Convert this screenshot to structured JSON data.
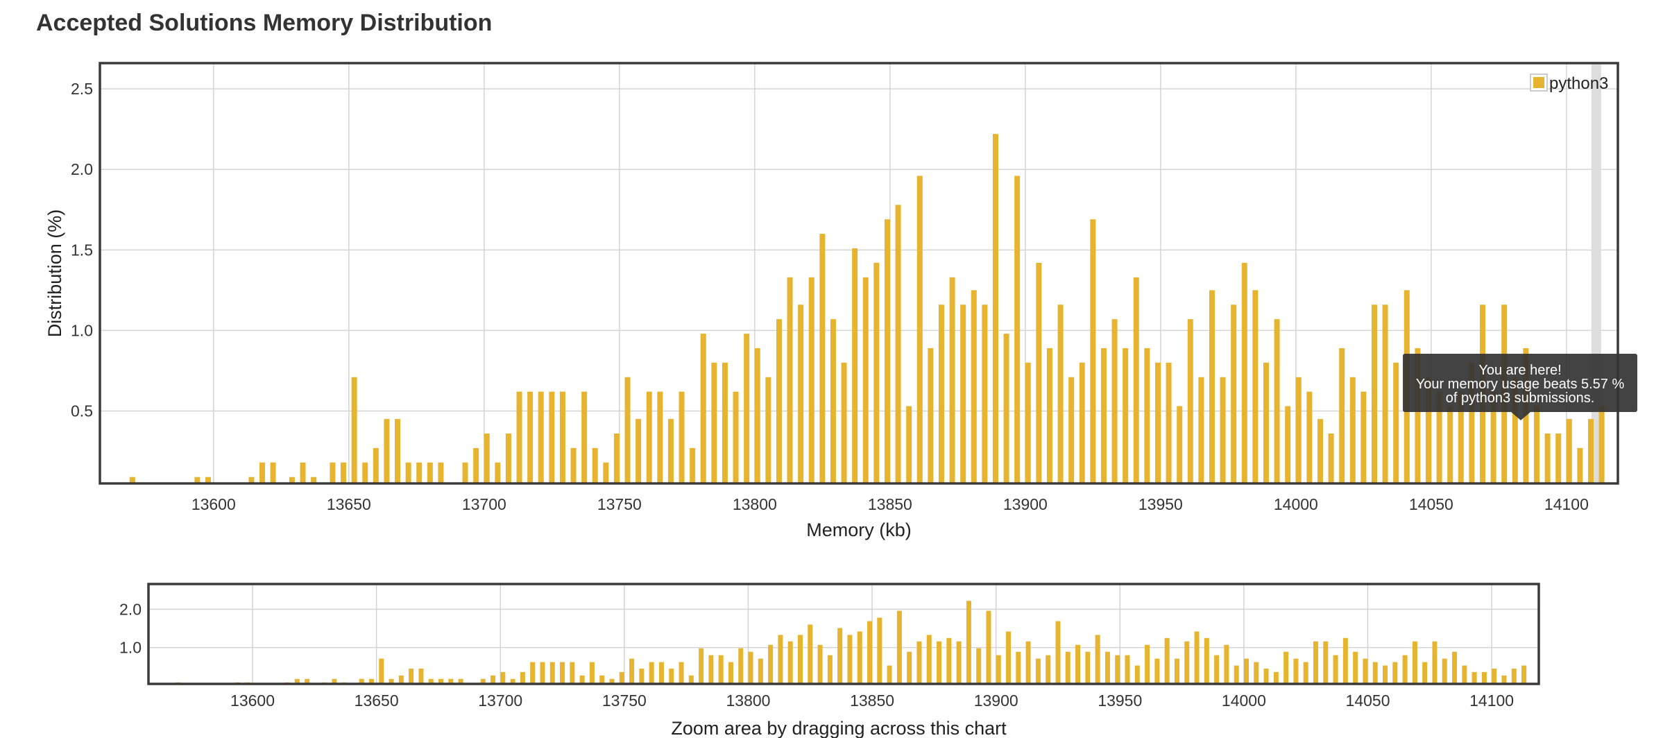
{
  "page": {
    "title": "Accepted Solutions Memory Distribution"
  },
  "colors": {
    "bar": "#e6b42e",
    "grid": "#d4d4d4",
    "frame": "#3a3a3a",
    "tooltip_bg": "#333333",
    "highlight": "#dddddd"
  },
  "main_chart": {
    "xlabel": "Memory (kb)",
    "ylabel": "Distribution (%)",
    "legend": "python3",
    "xticks": [
      "13600",
      "13650",
      "13700",
      "13750",
      "13800",
      "13850",
      "13900",
      "13950",
      "14000",
      "14050",
      "14100"
    ],
    "yticks": [
      "0.5",
      "1.0",
      "1.5",
      "2.0",
      "2.5"
    ],
    "tooltip": {
      "line1": "You are here!",
      "line2": "Your memory usage beats 5.57 %",
      "line3": "of python3 submissions."
    }
  },
  "zoom_chart": {
    "label": "Zoom area by dragging across this chart",
    "xticks": [
      "13600",
      "13650",
      "13700",
      "13750",
      "13800",
      "13850",
      "13900",
      "13950",
      "14000",
      "14050",
      "14100"
    ],
    "yticks": [
      "1.0",
      "2.0"
    ]
  },
  "chart_data": {
    "type": "bar",
    "title": "Accepted Solutions Memory Distribution",
    "xlabel": "Memory (kb)",
    "ylabel": "Distribution (%)",
    "xlim": [
      13558,
      14119
    ],
    "ylim": [
      0.05,
      2.66
    ],
    "legend_position": "top-right",
    "grid": true,
    "series": [
      {
        "name": "python3",
        "points": [
          [
            13570,
            0.09
          ],
          [
            13594,
            0.09
          ],
          [
            13598,
            0.09
          ],
          [
            13614,
            0.09
          ],
          [
            13618,
            0.18
          ],
          [
            13622,
            0.18
          ],
          [
            13629,
            0.09
          ],
          [
            13633,
            0.18
          ],
          [
            13637,
            0.09
          ],
          [
            13644,
            0.18
          ],
          [
            13648,
            0.18
          ],
          [
            13652,
            0.71
          ],
          [
            13656,
            0.18
          ],
          [
            13660,
            0.27
          ],
          [
            13664,
            0.45
          ],
          [
            13668,
            0.45
          ],
          [
            13672,
            0.18
          ],
          [
            13676,
            0.18
          ],
          [
            13680,
            0.18
          ],
          [
            13684,
            0.18
          ],
          [
            13693,
            0.18
          ],
          [
            13697,
            0.27
          ],
          [
            13701,
            0.36
          ],
          [
            13705,
            0.18
          ],
          [
            13709,
            0.36
          ],
          [
            13713,
            0.62
          ],
          [
            13717,
            0.62
          ],
          [
            13721,
            0.62
          ],
          [
            13725,
            0.62
          ],
          [
            13729,
            0.62
          ],
          [
            13733,
            0.27
          ],
          [
            13737,
            0.62
          ],
          [
            13741,
            0.27
          ],
          [
            13745,
            0.18
          ],
          [
            13749,
            0.36
          ],
          [
            13753,
            0.71
          ],
          [
            13757,
            0.45
          ],
          [
            13761,
            0.62
          ],
          [
            13765,
            0.62
          ],
          [
            13769,
            0.45
          ],
          [
            13773,
            0.62
          ],
          [
            13777,
            0.27
          ],
          [
            13781,
            0.98
          ],
          [
            13785,
            0.8
          ],
          [
            13789,
            0.8
          ],
          [
            13793,
            0.62
          ],
          [
            13797,
            0.98
          ],
          [
            13801,
            0.89
          ],
          [
            13805,
            0.71
          ],
          [
            13809,
            1.07
          ],
          [
            13813,
            1.33
          ],
          [
            13817,
            1.16
          ],
          [
            13821,
            1.33
          ],
          [
            13825,
            1.6
          ],
          [
            13829,
            1.07
          ],
          [
            13833,
            0.8
          ],
          [
            13837,
            1.51
          ],
          [
            13841,
            1.33
          ],
          [
            13845,
            1.42
          ],
          [
            13849,
            1.69
          ],
          [
            13853,
            1.78
          ],
          [
            13857,
            0.53
          ],
          [
            13861,
            1.96
          ],
          [
            13865,
            0.89
          ],
          [
            13869,
            1.16
          ],
          [
            13873,
            1.33
          ],
          [
            13877,
            1.16
          ],
          [
            13881,
            1.25
          ],
          [
            13885,
            1.16
          ],
          [
            13889,
            2.22
          ],
          [
            13893,
            0.98
          ],
          [
            13897,
            1.96
          ],
          [
            13901,
            0.8
          ],
          [
            13905,
            1.42
          ],
          [
            13909,
            0.89
          ],
          [
            13913,
            1.16
          ],
          [
            13917,
            0.71
          ],
          [
            13921,
            0.8
          ],
          [
            13925,
            1.69
          ],
          [
            13929,
            0.89
          ],
          [
            13933,
            1.07
          ],
          [
            13937,
            0.89
          ],
          [
            13941,
            1.33
          ],
          [
            13945,
            0.89
          ],
          [
            13949,
            0.8
          ],
          [
            13953,
            0.8
          ],
          [
            13957,
            0.53
          ],
          [
            13961,
            1.07
          ],
          [
            13965,
            0.71
          ],
          [
            13969,
            1.25
          ],
          [
            13973,
            0.71
          ],
          [
            13977,
            1.16
          ],
          [
            13981,
            1.42
          ],
          [
            13985,
            1.25
          ],
          [
            13989,
            0.8
          ],
          [
            13993,
            1.07
          ],
          [
            13997,
            0.53
          ],
          [
            14001,
            0.71
          ],
          [
            14005,
            0.62
          ],
          [
            14009,
            0.45
          ],
          [
            14013,
            0.36
          ],
          [
            14017,
            0.89
          ],
          [
            14021,
            0.71
          ],
          [
            14025,
            0.62
          ],
          [
            14029,
            1.16
          ],
          [
            14033,
            1.16
          ],
          [
            14037,
            0.8
          ],
          [
            14041,
            1.25
          ],
          [
            14045,
            0.89
          ],
          [
            14049,
            0.71
          ],
          [
            14053,
            0.62
          ],
          [
            14057,
            0.53
          ],
          [
            14061,
            0.62
          ],
          [
            14065,
            0.8
          ],
          [
            14069,
            1.16
          ],
          [
            14073,
            0.62
          ],
          [
            14077,
            1.16
          ],
          [
            14081,
            0.71
          ],
          [
            14085,
            0.89
          ],
          [
            14089,
            0.53
          ],
          [
            14093,
            0.36
          ],
          [
            14097,
            0.36
          ],
          [
            14101,
            0.45
          ],
          [
            14105,
            0.27
          ],
          [
            14109,
            0.45
          ],
          [
            14113,
            0.53
          ]
        ]
      }
    ],
    "highlight_x": 14111,
    "annotations": [
      "You are here!",
      "Your memory usage beats 5.57 %",
      "of python3 submissions."
    ]
  }
}
